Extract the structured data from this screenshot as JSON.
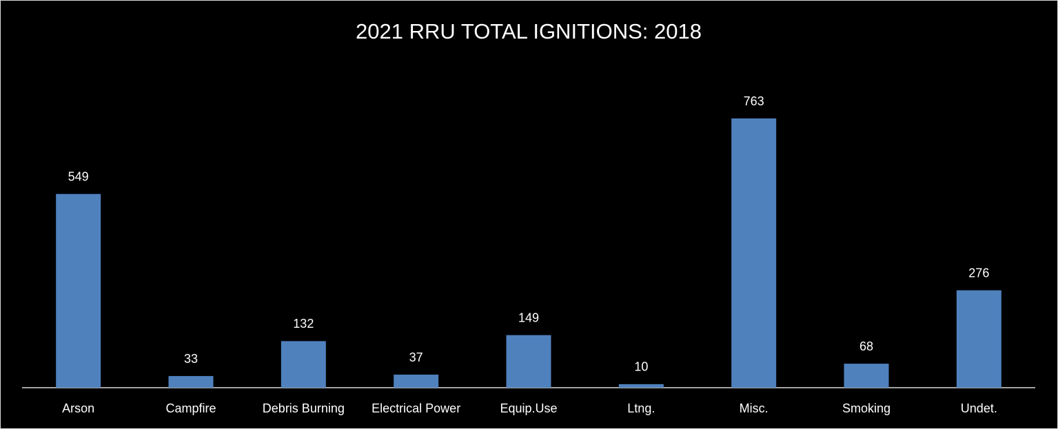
{
  "chart_data": {
    "type": "bar",
    "title": "2021 RRU TOTAL IGNITIONS: 2018",
    "categories": [
      "Arson",
      "Campfire",
      "Debris Burning",
      "Electrical Power",
      "Equip.Use",
      "Ltng.",
      "Misc.",
      "Smoking",
      "Undet."
    ],
    "values": [
      549,
      33,
      132,
      37,
      149,
      10,
      763,
      68,
      276
    ],
    "color": "#4f81bd"
  }
}
